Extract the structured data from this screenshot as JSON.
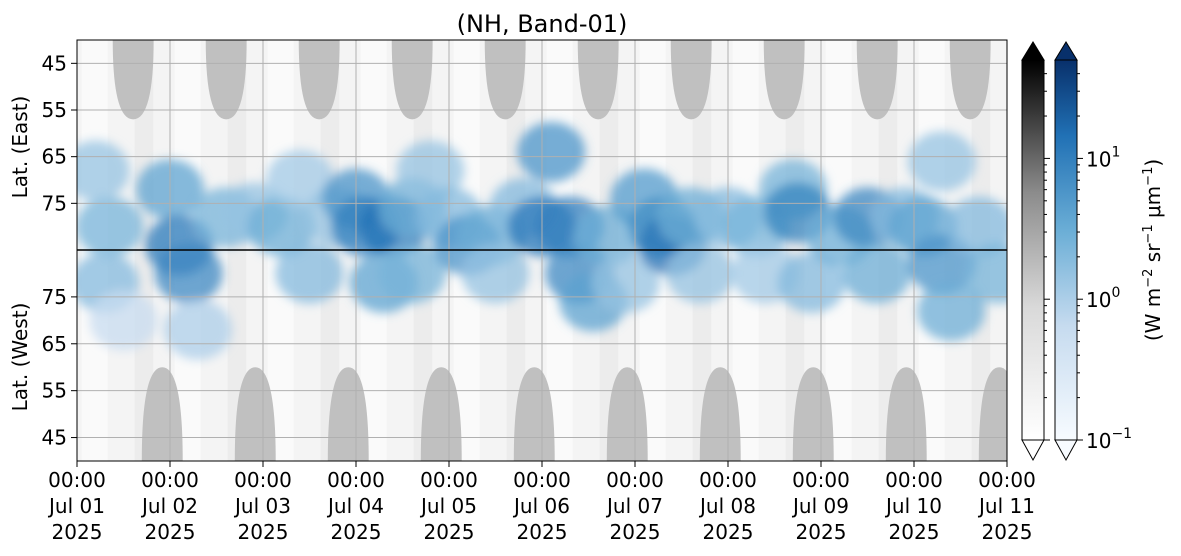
{
  "chart_data": {
    "type": "heatmap",
    "title": "(NH, Band-01)",
    "ylabel_top": "Lat. (East)",
    "ylabel_bottom": "Lat. (West)",
    "colorbar_label": "(W m",
    "colorbar_label_parts": [
      "(W m",
      "−2",
      " sr",
      "−1",
      " μm",
      "−1",
      ")"
    ],
    "x_tick_times": [
      "00:00",
      "00:00",
      "00:00",
      "00:00",
      "00:00",
      "00:00",
      "00:00",
      "00:00",
      "00:00",
      "00:00",
      "00:00"
    ],
    "x_tick_dates": [
      "Jul 01",
      "Jul 02",
      "Jul 03",
      "Jul 04",
      "Jul 05",
      "Jul 06",
      "Jul 07",
      "Jul 08",
      "Jul 09",
      "Jul 10",
      "Jul 11"
    ],
    "x_tick_years": [
      "2025",
      "2025",
      "2025",
      "2025",
      "2025",
      "2025",
      "2025",
      "2025",
      "2025",
      "2025",
      "2025"
    ],
    "xlim": [
      "2025-07-01 00:00",
      "2025-07-11 00:00"
    ],
    "y_ticks_top": [
      "45",
      "55",
      "65",
      "75"
    ],
    "y_ticks_bottom": [
      "75",
      "65",
      "55",
      "45"
    ],
    "ylim_top": [
      40,
      85
    ],
    "ylim_bottom": [
      85,
      40
    ],
    "colorbar_scale": "log",
    "colorbar_range": [
      0.1,
      50
    ],
    "colorbar_ticks": [
      {
        "base": "10",
        "exp": "1",
        "value": 10
      },
      {
        "base": "10",
        "exp": "0",
        "value": 1
      },
      {
        "base": "10",
        "exp": "−1",
        "value": 0.1
      }
    ],
    "colormaps": [
      "grey",
      "blues"
    ],
    "colors": {
      "blue_dark": "#08306b",
      "blue_mid": "#2171b5",
      "blue_light": "#c6dbef",
      "grey_patch": "#c0c0c0",
      "grey_dark": "#000000"
    },
    "grid": true,
    "hemisphere_divider_latitude": 85,
    "daytime_arc_east": [
      {
        "day": "Jul 01",
        "center_hour": 14.5,
        "lowest_lat": 57
      },
      {
        "day": "Jul 02",
        "center_hour": 14.5,
        "lowest_lat": 57
      },
      {
        "day": "Jul 03",
        "center_hour": 14.5,
        "lowest_lat": 57
      },
      {
        "day": "Jul 04",
        "center_hour": 14.5,
        "lowest_lat": 57
      },
      {
        "day": "Jul 05",
        "center_hour": 14.5,
        "lowest_lat": 57
      },
      {
        "day": "Jul 06",
        "center_hour": 14.5,
        "lowest_lat": 57
      },
      {
        "day": "Jul 07",
        "center_hour": 14.5,
        "lowest_lat": 57
      },
      {
        "day": "Jul 08",
        "center_hour": 14.5,
        "lowest_lat": 57
      },
      {
        "day": "Jul 09",
        "center_hour": 14.5,
        "lowest_lat": 57
      },
      {
        "day": "Jul 10",
        "center_hour": 14.5,
        "lowest_lat": 57
      }
    ],
    "daytime_arc_west": [
      {
        "day": "Jul 01",
        "center_hour": 22,
        "lowest_lat": 60
      },
      {
        "day": "Jul 02",
        "center_hour": 22,
        "lowest_lat": 60
      },
      {
        "day": "Jul 03",
        "center_hour": 22,
        "lowest_lat": 60
      },
      {
        "day": "Jul 04",
        "center_hour": 22,
        "lowest_lat": 60
      },
      {
        "day": "Jul 05",
        "center_hour": 22,
        "lowest_lat": 60
      },
      {
        "day": "Jul 06",
        "center_hour": 22,
        "lowest_lat": 60
      },
      {
        "day": "Jul 07",
        "center_hour": 22,
        "lowest_lat": 60
      },
      {
        "day": "Jul 08",
        "center_hour": 22,
        "lowest_lat": 60
      },
      {
        "day": "Jul 09",
        "center_hour": 22,
        "lowest_lat": 60
      },
      {
        "day": "Jul 10",
        "center_hour": 22,
        "lowest_lat": 60
      }
    ],
    "radiance_blobs": [
      {
        "day": 0.35,
        "lat": 80,
        "hemi": "east",
        "value": 2.5
      },
      {
        "day": 0.2,
        "lat": 68,
        "hemi": "east",
        "value": 1.5
      },
      {
        "day": 0.3,
        "lat": 78,
        "hemi": "west",
        "value": 2.0
      },
      {
        "day": 0.5,
        "lat": 70,
        "hemi": "west",
        "value": 0.6
      },
      {
        "day": 1.0,
        "lat": 72,
        "hemi": "east",
        "value": 4
      },
      {
        "day": 1.1,
        "lat": 84,
        "hemi": "east",
        "value": 12
      },
      {
        "day": 1.2,
        "lat": 80,
        "hemi": "west",
        "value": 8
      },
      {
        "day": 1.3,
        "lat": 68,
        "hemi": "west",
        "value": 1.0
      },
      {
        "day": 1.6,
        "lat": 78,
        "hemi": "east",
        "value": 2.5
      },
      {
        "day": 1.9,
        "lat": 77,
        "hemi": "east",
        "value": 1.5
      },
      {
        "day": 2.2,
        "lat": 80,
        "hemi": "east",
        "value": 3
      },
      {
        "day": 2.4,
        "lat": 70,
        "hemi": "east",
        "value": 1.2
      },
      {
        "day": 2.5,
        "lat": 80,
        "hemi": "west",
        "value": 2.0
      },
      {
        "day": 2.8,
        "lat": 78,
        "hemi": "east",
        "value": 1.5
      },
      {
        "day": 3.0,
        "lat": 74,
        "hemi": "east",
        "value": 6
      },
      {
        "day": 3.1,
        "lat": 80,
        "hemi": "east",
        "value": 10
      },
      {
        "day": 3.4,
        "lat": 80,
        "hemi": "east",
        "value": 14
      },
      {
        "day": 3.3,
        "lat": 78,
        "hemi": "west",
        "value": 4
      },
      {
        "day": 3.6,
        "lat": 76,
        "hemi": "east",
        "value": 3
      },
      {
        "day": 3.8,
        "lat": 68,
        "hemi": "east",
        "value": 1.5
      },
      {
        "day": 3.6,
        "lat": 80,
        "hemi": "west",
        "value": 2.5
      },
      {
        "day": 4.0,
        "lat": 78,
        "hemi": "east",
        "value": 2.0
      },
      {
        "day": 4.2,
        "lat": 84,
        "hemi": "east",
        "value": 6
      },
      {
        "day": 4.45,
        "lat": 82,
        "hemi": "east",
        "value": 3
      },
      {
        "day": 4.5,
        "lat": 80,
        "hemi": "west",
        "value": 1.5
      },
      {
        "day": 4.8,
        "lat": 76,
        "hemi": "east",
        "value": 2.0
      },
      {
        "day": 5.0,
        "lat": 80,
        "hemi": "east",
        "value": 12
      },
      {
        "day": 5.1,
        "lat": 64,
        "hemi": "east",
        "value": 6
      },
      {
        "day": 5.3,
        "lat": 80,
        "hemi": "east",
        "value": 10
      },
      {
        "day": 5.4,
        "lat": 80,
        "hemi": "west",
        "value": 8
      },
      {
        "day": 5.55,
        "lat": 74,
        "hemi": "west",
        "value": 4
      },
      {
        "day": 5.7,
        "lat": 82,
        "hemi": "east",
        "value": 3
      },
      {
        "day": 5.9,
        "lat": 78,
        "hemi": "west",
        "value": 1.5
      },
      {
        "day": 6.1,
        "lat": 74,
        "hemi": "east",
        "value": 5
      },
      {
        "day": 6.3,
        "lat": 80,
        "hemi": "east",
        "value": 7
      },
      {
        "day": 6.4,
        "lat": 84,
        "hemi": "east",
        "value": 14
      },
      {
        "day": 6.6,
        "lat": 78,
        "hemi": "east",
        "value": 3
      },
      {
        "day": 6.7,
        "lat": 80,
        "hemi": "west",
        "value": 1.5
      },
      {
        "day": 7.0,
        "lat": 78,
        "hemi": "east",
        "value": 2.0
      },
      {
        "day": 7.3,
        "lat": 80,
        "hemi": "east",
        "value": 2.5
      },
      {
        "day": 7.4,
        "lat": 80,
        "hemi": "west",
        "value": 1.2
      },
      {
        "day": 7.7,
        "lat": 72,
        "hemi": "east",
        "value": 2.5
      },
      {
        "day": 7.75,
        "lat": 77,
        "hemi": "east",
        "value": 9
      },
      {
        "day": 7.9,
        "lat": 78,
        "hemi": "west",
        "value": 2.0
      },
      {
        "day": 8.2,
        "lat": 82,
        "hemi": "east",
        "value": 3
      },
      {
        "day": 8.5,
        "lat": 78,
        "hemi": "east",
        "value": 8
      },
      {
        "day": 8.6,
        "lat": 80,
        "hemi": "west",
        "value": 3
      },
      {
        "day": 8.9,
        "lat": 78,
        "hemi": "east",
        "value": 2.0
      },
      {
        "day": 9.1,
        "lat": 80,
        "hemi": "east",
        "value": 4
      },
      {
        "day": 9.3,
        "lat": 82,
        "hemi": "west",
        "value": 6
      },
      {
        "day": 9.4,
        "lat": 72,
        "hemi": "west",
        "value": 3
      },
      {
        "day": 9.3,
        "lat": 66,
        "hemi": "east",
        "value": 1.5
      },
      {
        "day": 9.7,
        "lat": 80,
        "hemi": "east",
        "value": 2.0
      },
      {
        "day": 9.9,
        "lat": 80,
        "hemi": "west",
        "value": 2.5
      }
    ]
  }
}
